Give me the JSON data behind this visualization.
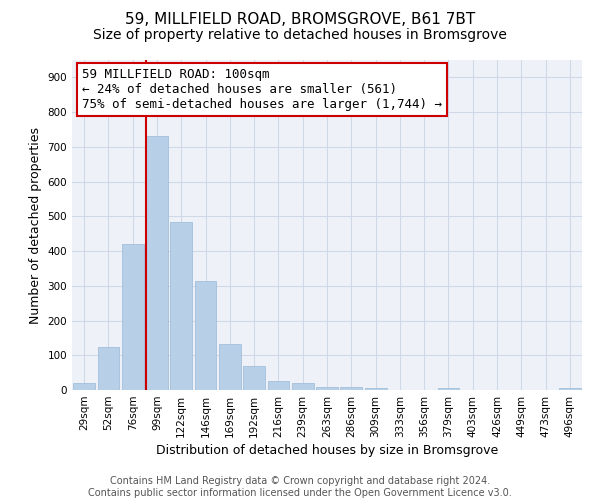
{
  "title_line1": "59, MILLFIELD ROAD, BROMSGROVE, B61 7BT",
  "title_line2": "Size of property relative to detached houses in Bromsgrove",
  "xlabel": "Distribution of detached houses by size in Bromsgrove",
  "ylabel": "Number of detached properties",
  "categories": [
    "29sqm",
    "52sqm",
    "76sqm",
    "99sqm",
    "122sqm",
    "146sqm",
    "169sqm",
    "192sqm",
    "216sqm",
    "239sqm",
    "263sqm",
    "286sqm",
    "309sqm",
    "333sqm",
    "356sqm",
    "379sqm",
    "403sqm",
    "426sqm",
    "449sqm",
    "473sqm",
    "496sqm"
  ],
  "values": [
    20,
    125,
    420,
    730,
    485,
    315,
    132,
    68,
    25,
    20,
    10,
    8,
    5,
    0,
    0,
    5,
    0,
    0,
    0,
    0,
    7
  ],
  "bar_color": "#b8cfe8",
  "bar_edge_color": "#9ab8d8",
  "grid_color": "#d0d8e8",
  "background_color": "#eef2f8",
  "vline_x_index": 3,
  "vline_color": "#cc0000",
  "annotation_text": "59 MILLFIELD ROAD: 100sqm\n← 24% of detached houses are smaller (561)\n75% of semi-detached houses are larger (1,744) →",
  "ylim": [
    0,
    950
  ],
  "yticks": [
    0,
    100,
    200,
    300,
    400,
    500,
    600,
    700,
    800,
    900
  ],
  "footnote_line1": "Contains HM Land Registry data © Crown copyright and database right 2024.",
  "footnote_line2": "Contains public sector information licensed under the Open Government Licence v3.0.",
  "title_fontsize": 11,
  "subtitle_fontsize": 10,
  "ylabel_fontsize": 9,
  "xlabel_fontsize": 9,
  "tick_fontsize": 7.5,
  "annotation_fontsize": 9,
  "footnote_fontsize": 7
}
